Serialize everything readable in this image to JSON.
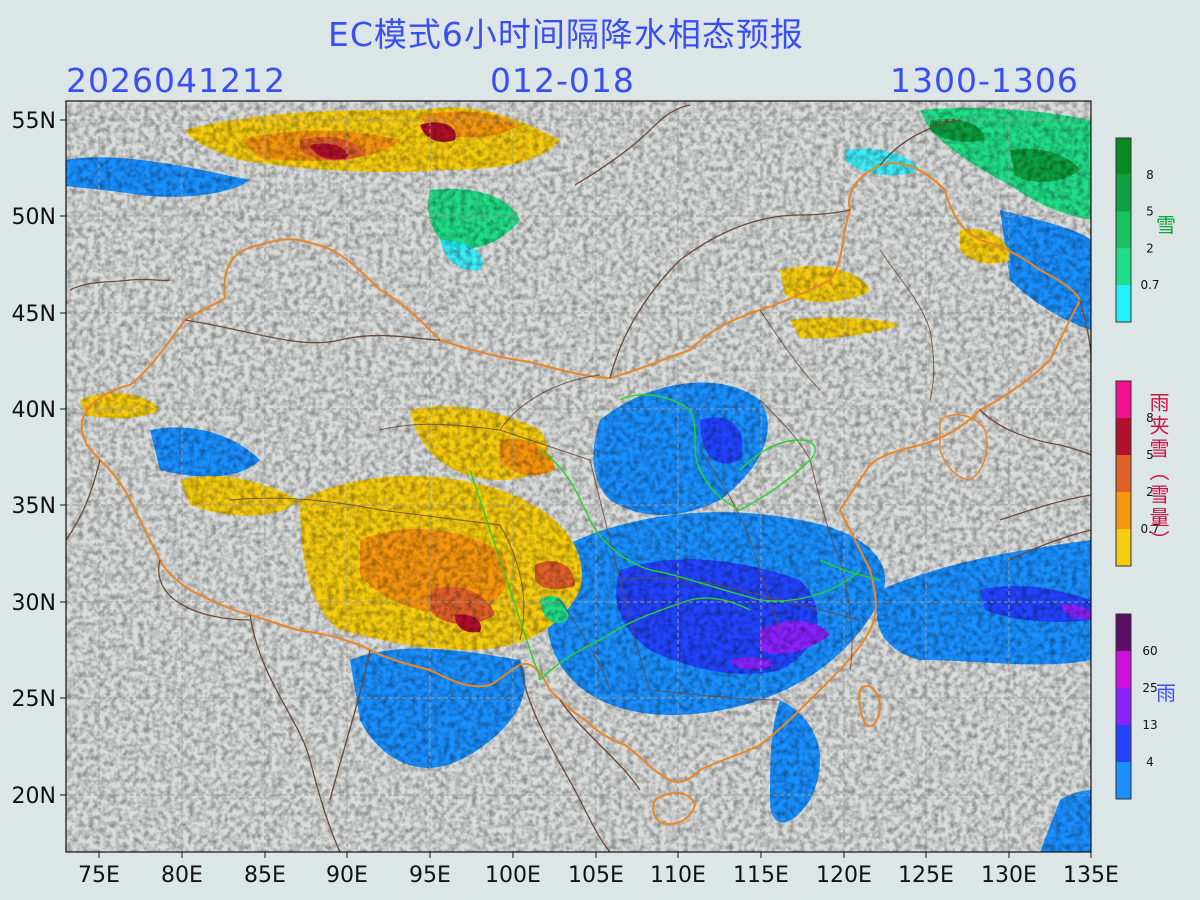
{
  "header": {
    "title": "EC模式6小时间隔降水相态预报",
    "init_time": "2026041212",
    "forecast_hours": "012-018",
    "valid_time": "1300-1306"
  },
  "map": {
    "lon_range": [
      73,
      135
    ],
    "lat_range": [
      17,
      56
    ],
    "lon_ticks": [
      "75E",
      "80E",
      "85E",
      "90E",
      "95E",
      "100E",
      "105E",
      "110E",
      "115E",
      "120E",
      "125E",
      "130E",
      "135E"
    ],
    "lat_ticks": [
      "55N",
      "50N",
      "45N",
      "40N",
      "35N",
      "30N",
      "25N",
      "20N"
    ],
    "grid": true,
    "background_color": "#d9dcda",
    "border_colors": {
      "country": "#e8862a",
      "province": "#6b4a3a",
      "river_basin": "#2bd12b"
    }
  },
  "legends": {
    "snow": {
      "title": "雪",
      "title_color": "#12a23a",
      "levels": [
        "0.7",
        "2",
        "5",
        "8"
      ],
      "colors": [
        "#22f0ff",
        "#22dd88",
        "#17c060",
        "#0ea040",
        "#078a20"
      ]
    },
    "sleet": {
      "title": "雨夹雪（雪量）",
      "title_color": "#cc1144",
      "levels": [
        "0.7",
        "2",
        "5",
        "8"
      ],
      "colors": [
        "#f5cc10",
        "#f5960f",
        "#e0602a",
        "#b0102a",
        "#f01090"
      ]
    },
    "rain": {
      "title": "雨",
      "title_color": "#3b4ff0",
      "levels": [
        "4",
        "13",
        "25",
        "60"
      ],
      "colors": [
        "#1a90ff",
        "#2244ff",
        "#8a22ff",
        "#cc11dd",
        "#5a0e66"
      ]
    }
  }
}
